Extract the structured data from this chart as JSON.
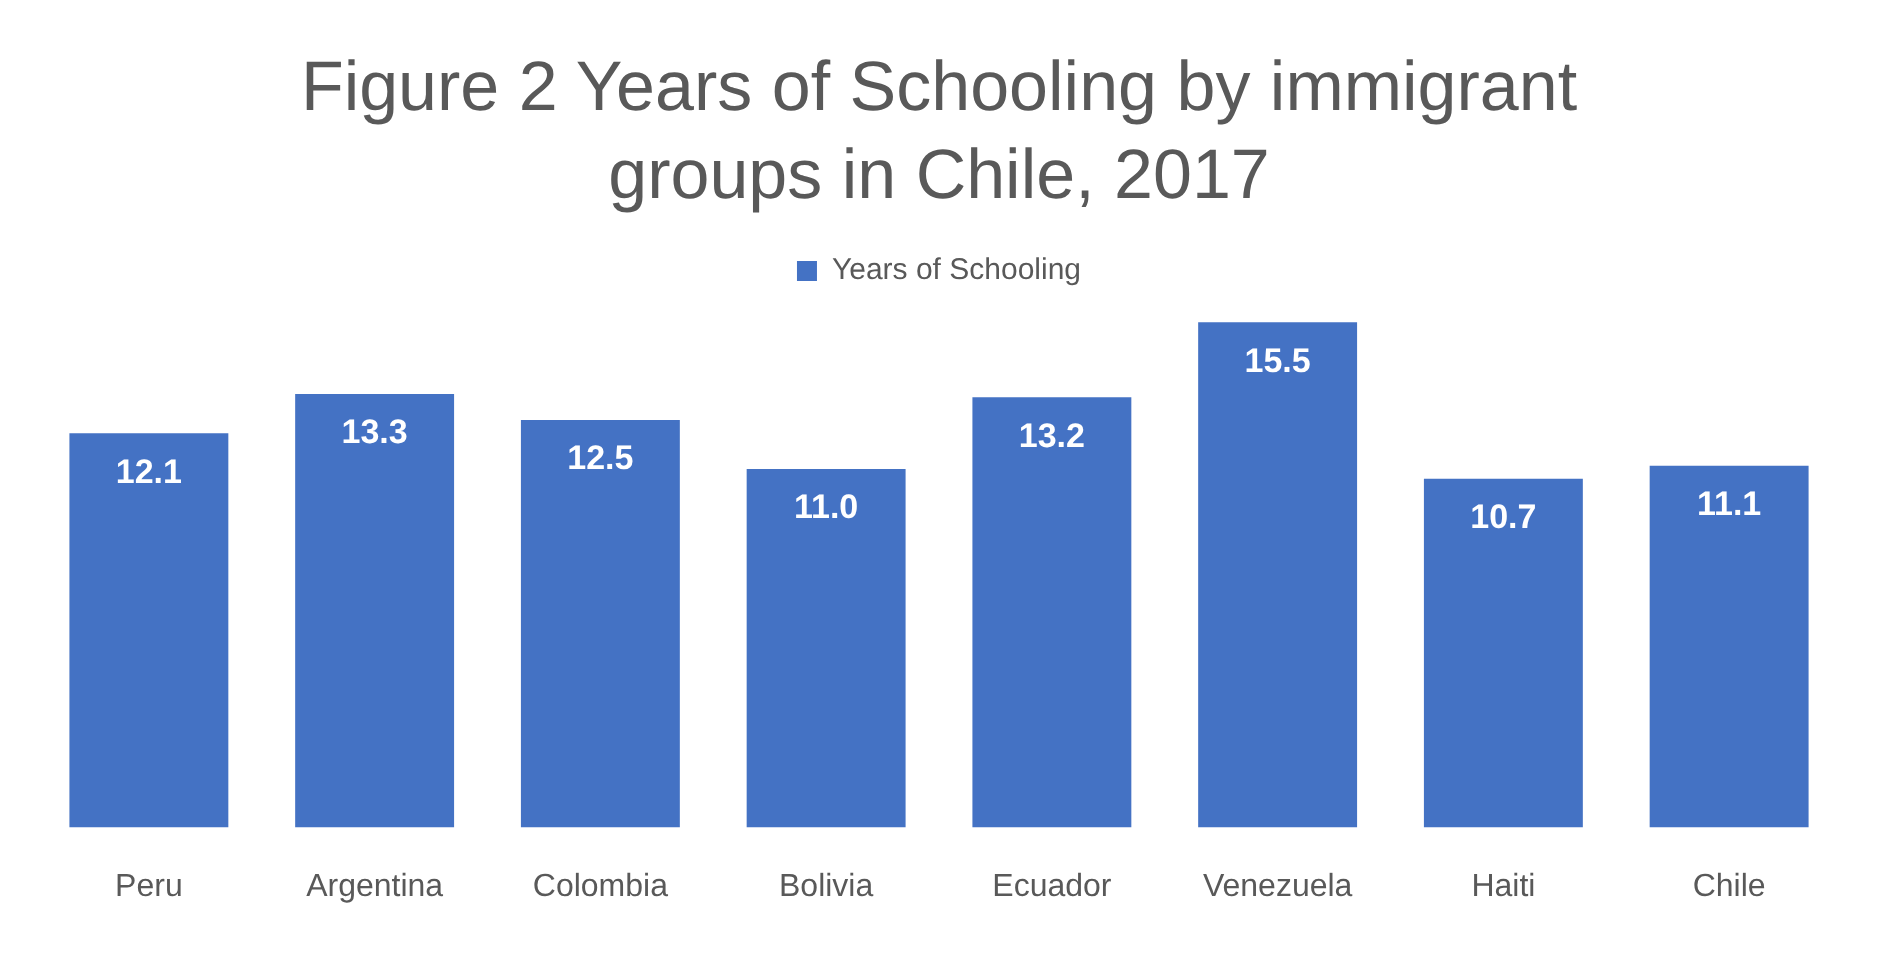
{
  "chart_data": {
    "type": "bar",
    "title": "Figure 2 Years of Schooling by immigrant groups in Chile, 2017",
    "categories": [
      "Peru",
      "Argentina",
      "Colombia",
      "Bolivia",
      "Ecuador",
      "Venezuela",
      "Haiti",
      "Chile"
    ],
    "series": [
      {
        "name": "Years of Schooling",
        "color": "#4472c4",
        "values": [
          12.1,
          13.3,
          12.5,
          11.0,
          13.2,
          15.5,
          10.7,
          11.1
        ],
        "value_labels": [
          "12.1",
          "13.3",
          "12.5",
          "11.0",
          "13.2",
          "15.5",
          "10.7",
          "11.1"
        ]
      }
    ],
    "legend": "top",
    "grid": false,
    "tick_labels": "x"
  }
}
